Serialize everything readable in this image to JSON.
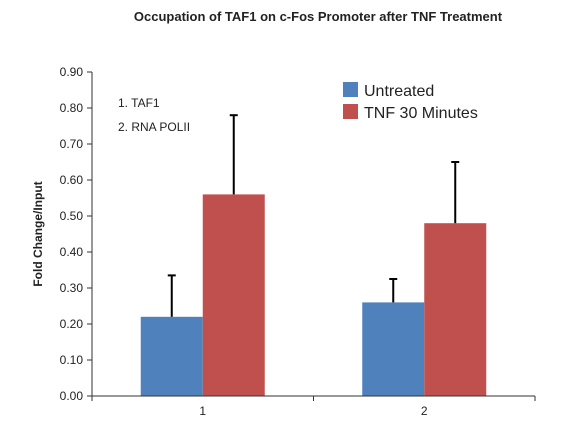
{
  "chart_data": {
    "type": "bar",
    "title": "Occupation of TAF1 on c-Fos Promoter after TNF Treatment",
    "ylabel": "Fold Change/Input",
    "xlabel": "",
    "categories": [
      "1",
      "2"
    ],
    "ylim": [
      0,
      0.9
    ],
    "yticks": [
      "0.00",
      "0.10",
      "0.20",
      "0.30",
      "0.40",
      "0.50",
      "0.60",
      "0.70",
      "0.80",
      "0.90"
    ],
    "series": [
      {
        "name": "Untreated",
        "color": "#4F81BD",
        "values": [
          0.22,
          0.26
        ],
        "error": [
          0.115,
          0.065
        ]
      },
      {
        "name": "TNF 30 Minutes",
        "color": "#C0504D",
        "values": [
          0.56,
          0.48
        ],
        "error": [
          0.22,
          0.17
        ]
      }
    ],
    "annotations": [
      "1. TAF1",
      "2. RNA POLII"
    ],
    "legend_position": "top-right",
    "grid": false
  }
}
